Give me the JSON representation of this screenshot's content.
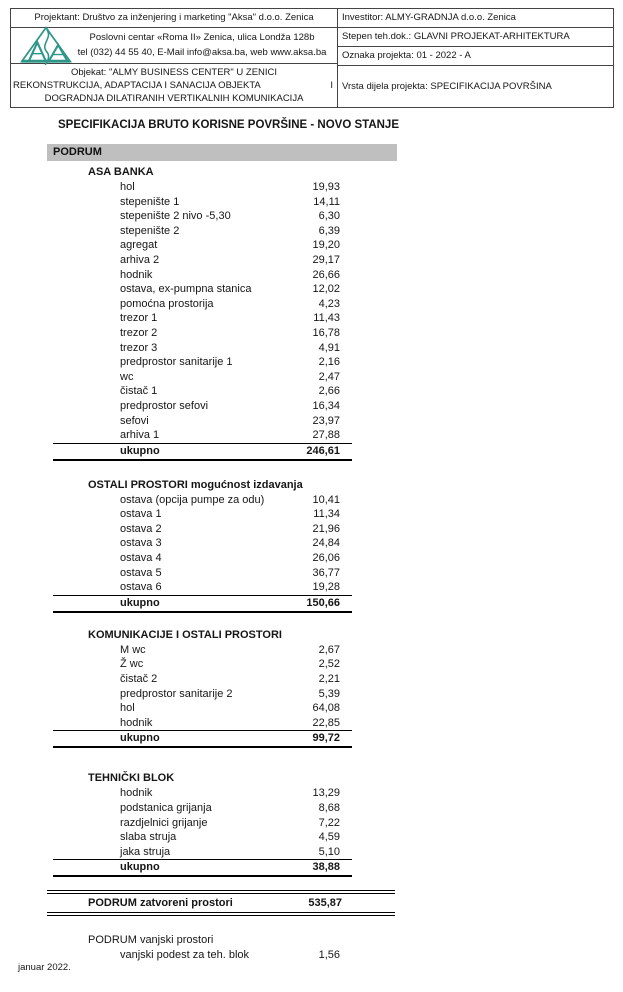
{
  "colors": {
    "floor_bar_bg": "#bfbfbf",
    "logo_teal": "#2e9688",
    "text": "#161616"
  },
  "header": {
    "projektant_line": "Projektant: Društvo za inženjering i marketing \"Aksa\" d.o.o. Zenica",
    "address_line": "Poslovni centar «Roma II» Zenica, ulica Londža 128b",
    "contact_line": "tel (032) 44 55 40, E-Mail info@aksa.ba, web www.aksa.ba",
    "objekat_line1": "Objekat:  \"ALMY BUSINESS CENTER\" U ZENICI",
    "objekat_line2": "REKONSTRUKCIJA, ADAPTACIJA I SANACIJA OBJEKTA",
    "objekat_line2_suffix": "I",
    "objekat_line3": "DOGRADNJA DILATIRANIH VERTIKALNIH KOMUNIKACIJA",
    "investitor": "Investitor:   ALMY-GRADNJA d.o.o. Zenica",
    "stepen": "Stepen teh.dok.: GLAVNI PROJEKAT-ARHITEKTURA",
    "oznaka": "Oznaka projekta:   01 - 2022 - A",
    "vrsta": "Vrsta dijela projekta: SPECIFIKACIJA POVRŠINA"
  },
  "title": "SPECIFIKACIJA BRUTO KORISNE POVRŠINE - NOVO STANJE",
  "floor_header": "PODRUM",
  "sections": [
    {
      "name": "ASA BANKA",
      "rows": [
        {
          "label": "hol",
          "value": "19,93"
        },
        {
          "label": "stepenište 1",
          "value": "14,11"
        },
        {
          "label": "stepenište 2 nivo -5,30",
          "value": "6,30"
        },
        {
          "label": "stepenište 2",
          "value": "6,39"
        },
        {
          "label": "agregat",
          "value": "19,20"
        },
        {
          "label": "arhiva 2",
          "value": "29,17"
        },
        {
          "label": "hodnik",
          "value": "26,66"
        },
        {
          "label": "ostava, ex-pumpna stanica",
          "value": "12,02"
        },
        {
          "label": "pomoćna prostorija",
          "value": "4,23"
        },
        {
          "label": "trezor 1",
          "value": "11,43"
        },
        {
          "label": "trezor 2",
          "value": "16,78"
        },
        {
          "label": "trezor 3",
          "value": "4,91"
        },
        {
          "label": "predprostor sanitarije 1",
          "value": "2,16"
        },
        {
          "label": "wc",
          "value": "2,47"
        },
        {
          "label": "čistač 1",
          "value": "2,66"
        },
        {
          "label": "predprostor sefovi",
          "value": "16,34"
        },
        {
          "label": "sefovi",
          "value": "23,97"
        },
        {
          "label": "arhiva 1",
          "value": "27,88"
        }
      ],
      "total_label": "ukupno",
      "total_value": "246,61"
    },
    {
      "name": "OSTALI PROSTORI mogućnost izdavanja",
      "rows": [
        {
          "label": "ostava (opcija pumpe za odu)",
          "value": "10,41"
        },
        {
          "label": "ostava 1",
          "value": "11,34"
        },
        {
          "label": "ostava 2",
          "value": "21,96"
        },
        {
          "label": "ostava 3",
          "value": "24,84"
        },
        {
          "label": "ostava 4",
          "value": "26,06"
        },
        {
          "label": "ostava 5",
          "value": "36,77"
        },
        {
          "label": "ostava 6",
          "value": "19,28"
        }
      ],
      "total_label": "ukupno",
      "total_value": "150,66"
    },
    {
      "name": "KOMUNIKACIJE I OSTALI PROSTORI",
      "rows": [
        {
          "label": "M wc",
          "value": "2,67"
        },
        {
          "label": "Ž wc",
          "value": "2,52"
        },
        {
          "label": "čistač 2",
          "value": "2,21"
        },
        {
          "label": "predprostor sanitarije 2",
          "value": "5,39"
        },
        {
          "label": "hol",
          "value": "64,08"
        },
        {
          "label": "hodnik",
          "value": "22,85"
        }
      ],
      "total_label": "ukupno",
      "total_value": "99,72"
    },
    {
      "name": "TEHNIČKI BLOK",
      "rows": [
        {
          "label": "hodnik",
          "value": "13,29"
        },
        {
          "label": "podstanica grijanja",
          "value": "8,68"
        },
        {
          "label": "razdjelnici grijanje",
          "value": "7,22"
        },
        {
          "label": "slaba struja",
          "value": "4,59"
        },
        {
          "label": "jaka struja",
          "value": "5,10"
        }
      ],
      "total_label": "ukupno",
      "total_value": "38,88"
    }
  ],
  "grand_total": {
    "label": "PODRUM zatvoreni prostori",
    "value": "535,87"
  },
  "outdoor": {
    "label": "PODRUM vanjski prostori",
    "rows": [
      {
        "label": "vanjski podest za teh. blok",
        "value": "1,56"
      }
    ]
  },
  "footer": "januar 2022."
}
